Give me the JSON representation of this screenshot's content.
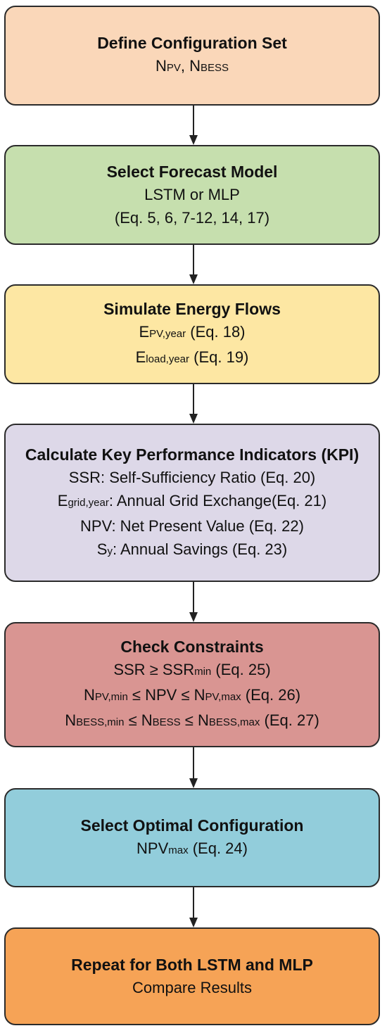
{
  "steps": [
    {
      "title": "Define Configuration Set",
      "color": "#fad7b9",
      "lines": [
        [
          [
            "N"
          ],
          [
            "PV",
            "sub"
          ],
          [
            ", N"
          ],
          [
            "BESS",
            "sub"
          ]
        ]
      ]
    },
    {
      "title": "Select Forecast Model",
      "color": "#c6dfae",
      "lines": [
        [
          [
            "LSTM or MLP"
          ]
        ],
        [
          [
            "(Eq. 5, 6, 7-12, 14, 17)"
          ]
        ]
      ]
    },
    {
      "title": "Simulate Energy Flows",
      "color": "#fde7a3",
      "lines": [
        [
          [
            "E"
          ],
          [
            "PV,year",
            "sub"
          ],
          [
            " (Eq. 18)"
          ]
        ],
        [
          [
            "E"
          ],
          [
            "load,year",
            "sub"
          ],
          [
            " (Eq. 19)"
          ]
        ]
      ]
    },
    {
      "title": "Calculate Key Performance Indicators (KPI)",
      "color": "#ddd8e8",
      "lines": [
        [
          [
            "SSR: Self-Sufficiency Ratio (Eq. 20)"
          ]
        ],
        [
          [
            "E"
          ],
          [
            "grid,year",
            "sub"
          ],
          [
            ": Annual Grid Exchange(Eq. 21)"
          ]
        ],
        [
          [
            "NPV: Net Present Value (Eq. 22)"
          ]
        ],
        [
          [
            "S"
          ],
          [
            "y",
            "sub"
          ],
          [
            ": Annual Savings (Eq. 23)"
          ]
        ]
      ]
    },
    {
      "title": "Check Constraints",
      "color": "#d99592",
      "lines": [
        [
          [
            "SSR ≥ SSR"
          ],
          [
            "min",
            "sub"
          ],
          [
            " (Eq. 25)"
          ]
        ],
        [
          [
            "N"
          ],
          [
            "PV,min",
            "sub"
          ],
          [
            " ≤ NPV ≤ N"
          ],
          [
            "PV,max",
            "sub"
          ],
          [
            " (Eq. 26)"
          ]
        ],
        [
          [
            "N"
          ],
          [
            "BESS,min",
            "sub"
          ],
          [
            " ≤ N"
          ],
          [
            "BESS",
            "sub"
          ],
          [
            " ≤ N"
          ],
          [
            "BESS,max",
            "sub"
          ],
          [
            " (Eq. 27)"
          ]
        ]
      ]
    },
    {
      "title": "Select Optimal Configuration",
      "color": "#92cddb",
      "lines": [
        [
          [
            "NPV"
          ],
          [
            "max",
            "sub"
          ],
          [
            " (Eq. 24)"
          ]
        ]
      ]
    },
    {
      "title": "Repeat for Both LSTM and MLP",
      "color": "#f6a356",
      "lines": [
        [
          [
            "Compare Results"
          ]
        ]
      ]
    }
  ]
}
